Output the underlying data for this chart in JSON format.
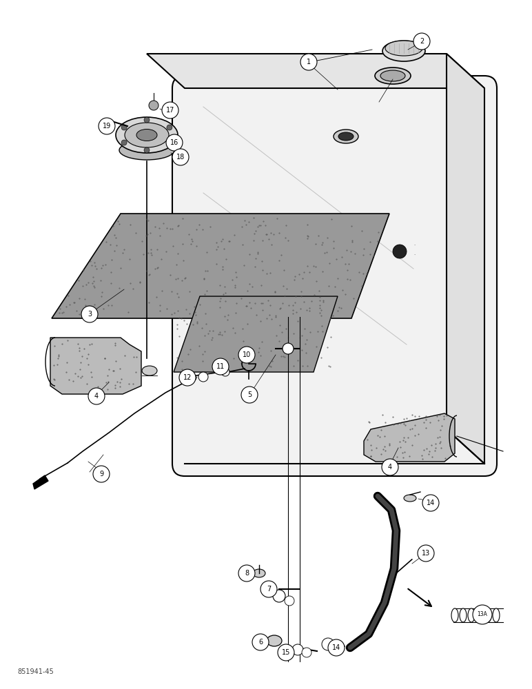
{
  "background_color": "#ffffff",
  "line_color": "#000000",
  "bottom_label": "851941-45",
  "figsize": [
    7.72,
    10.0
  ],
  "dpi": 100
}
